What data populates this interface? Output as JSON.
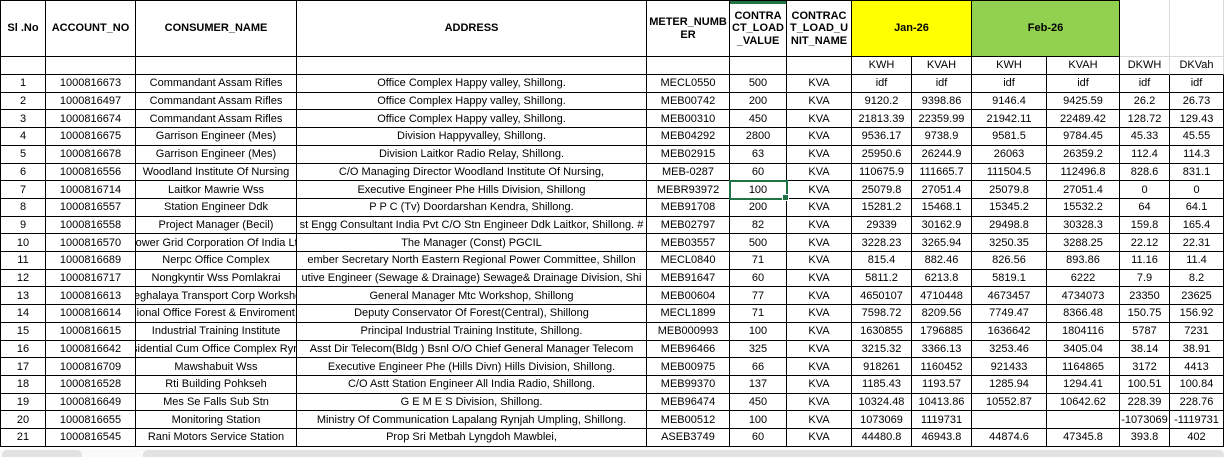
{
  "table": {
    "column_keys": [
      "sl_no",
      "account_no",
      "consumer_name",
      "address",
      "meter_number",
      "contract_load_value",
      "contract_load_unit_name",
      "jan_kwh",
      "jan_kvah",
      "feb_kwh",
      "feb_kvah",
      "dkwh",
      "dkvah"
    ],
    "columns": [
      {
        "key": "sl_no",
        "label": "Sl .No"
      },
      {
        "key": "account_no",
        "label": "ACCOUNT_NO"
      },
      {
        "key": "consumer_name",
        "label": "CONSUMER_NAME"
      },
      {
        "key": "address",
        "label": "ADDRESS"
      },
      {
        "key": "meter_number",
        "label": "METER_NUMBER"
      },
      {
        "key": "contract_load_value",
        "label": "CONTRACT_LOAD_VALUE"
      },
      {
        "key": "contract_load_unit_name",
        "label": "CONTRACT_LOAD_UNIT_NAME"
      }
    ],
    "month_groups": [
      {
        "label": "Jan-26",
        "color": "#FFFF00",
        "sub": [
          "KWH",
          "KVAH"
        ]
      },
      {
        "label": "Feb-26",
        "color": "#92D050",
        "sub": [
          "KWH",
          "KVAH"
        ]
      }
    ],
    "extra_columns": [
      "DKWH",
      "DKVah"
    ],
    "rows": [
      [
        "1",
        "1000816673",
        "Commandant Assam Rifles",
        "Office Complex Happy valley, Shillong.",
        "MECL0550",
        "500",
        "KVA",
        "idf",
        "idf",
        "idf",
        "idf",
        "idf",
        "idf"
      ],
      [
        "2",
        "1000816497",
        "Commandant Assam Rifles",
        "Office Complex Happy valley, Shillong.",
        "MEB00742",
        "200",
        "KVA",
        "9120.2",
        "9398.86",
        "9146.4",
        "9425.59",
        "26.2",
        "26.73"
      ],
      [
        "3",
        "1000816674",
        "Commandant Assam Rifles",
        "Office Complex Happy valley, Shillong.",
        "MEB00310",
        "450",
        "KVA",
        "21813.39",
        "22359.99",
        "21942.11",
        "22489.42",
        "128.72",
        "129.43"
      ],
      [
        "4",
        "1000816675",
        "Garrison Engineer (Mes)",
        "Division Happyvalley, Shillong.",
        "MEB04292",
        "2800",
        "KVA",
        "9536.17",
        "9738.9",
        "9581.5",
        "9784.45",
        "45.33",
        "45.55"
      ],
      [
        "5",
        "1000816678",
        "Garrison Engineer (Mes)",
        "Division Laitkor Radio Relay, Shillong.",
        "MEB02915",
        "63",
        "KVA",
        "25950.6",
        "26244.9",
        "26063",
        "26359.2",
        "112.4",
        "114.3"
      ],
      [
        "6",
        "1000816556",
        "Woodland Institute Of Nursing",
        "C/O Managing Director Woodland Institute Of Nursing,",
        "MEB-0287",
        "60",
        "KVA",
        "110675.9",
        "111665.7",
        "111504.5",
        "112496.8",
        "828.6",
        "831.1"
      ],
      [
        "7",
        "1000816714",
        "Laitkor Mawrie Wss",
        "Executive Engineer Phe Hills Division, Shillong",
        "MEBR93972",
        "100",
        "KVA",
        "25079.8",
        "27051.4",
        "25079.8",
        "27051.4",
        "0",
        "0"
      ],
      [
        "8",
        "1000816557",
        "Station Engineer Ddk",
        "P P C (Tv) Doordarshan Kendra, Shillong.",
        "MEB91708",
        "200",
        "KVA",
        "15281.2",
        "15468.1",
        "15345.2",
        "15532.2",
        "64",
        "64.1"
      ],
      [
        "9",
        "1000816558",
        "Project Manager (Becil)",
        "st Engg Consultant India Pvt C/O Stn Engineer Ddk Laitkor, Shillong. #",
        "MEB02797",
        "82",
        "KVA",
        "29339",
        "30162.9",
        "29498.8",
        "30328.3",
        "159.8",
        "165.4"
      ],
      [
        "10",
        "1000816570",
        "Power Grid Corporation Of India Ltd",
        "The Manager (Const) PGCIL",
        "MEB03557",
        "500",
        "KVA",
        "3228.23",
        "3265.94",
        "3250.35",
        "3288.25",
        "22.12",
        "22.31"
      ],
      [
        "11",
        "1000816689",
        "Nerpc Office Complex",
        "ember Secretary North Eastern Regional Power Committee, Shillon",
        "MECL0840",
        "71",
        "KVA",
        "815.4",
        "882.46",
        "826.56",
        "893.86",
        "11.16",
        "11.4"
      ],
      [
        "12",
        "1000816717",
        "Nongkyntir Wss Pomlakrai",
        "utive Engineer (Sewage & Drainage) Sewage& Drainage Division, Shi",
        "MEB91647",
        "60",
        "KVA",
        "5811.2",
        "6213.8",
        "5819.1",
        "6222",
        "7.9",
        "8.2"
      ],
      [
        "13",
        "1000816613",
        "Meghalaya Transport Corp Workshop",
        "General Manager Mtc Workshop, Shillong",
        "MEB00604",
        "77",
        "KVA",
        "4650107",
        "4710448",
        "4673457",
        "4734073",
        "23350",
        "23625"
      ],
      [
        "14",
        "1000816614",
        "Regional Office Forest & Enviroment Ner",
        "Deputy Conservator Of Forest(Central), Shillong",
        "MECL1899",
        "71",
        "KVA",
        "7598.72",
        "8209.56",
        "7749.47",
        "8366.48",
        "150.75",
        "156.92"
      ],
      [
        "15",
        "1000816615",
        "Industrial Training Institute",
        "Principal Industrial Training Institute, Shillong.",
        "MEB000993",
        "100",
        "KVA",
        "1630855",
        "1796885",
        "1636642",
        "1804116",
        "5787",
        "7231"
      ],
      [
        "16",
        "1000816642",
        "Residential Cum Office Complex Rynjah",
        "Asst Dir Telecom(Bldg ) Bsnl O/O Chief General Manager Telecom",
        "MEB96466",
        "325",
        "KVA",
        "3215.32",
        "3366.13",
        "3253.46",
        "3405.04",
        "38.14",
        "38.91"
      ],
      [
        "17",
        "1000816709",
        "Mawshabuit Wss",
        "Executive Engineer Phe (Hills Divn) Hills Division, Shillong.",
        "MEB00975",
        "66",
        "KVA",
        "918261",
        "1160452",
        "921433",
        "1164865",
        "3172",
        "4413"
      ],
      [
        "18",
        "1000816528",
        "Rti Building Pohkseh",
        "C/O Astt Station Engineer All India Radio, Shillong.",
        "MEB99370",
        "137",
        "KVA",
        "1185.43",
        "1193.57",
        "1285.94",
        "1294.41",
        "100.51",
        "100.84"
      ],
      [
        "19",
        "1000816649",
        "Mes Se Falls Sub Stn",
        "G E M E S Division, Shillong.",
        "MEB96474",
        "450",
        "KVA",
        "10324.48",
        "10413.86",
        "10552.87",
        "10642.62",
        "228.39",
        "228.76"
      ],
      [
        "20",
        "1000816655",
        "Monitoring Station",
        "Ministry Of Communication Lapalang Rynjah Umpling, Shillong.",
        "MEB00512",
        "100",
        "KVA",
        "1073069",
        "1119731",
        "",
        "",
        "-1073069",
        "-1119731"
      ],
      [
        "21",
        "1000816545",
        "Rani Motors Service Station",
        "Prop Sri Metbah Lyngdoh Mawblei,",
        "ASEB3749",
        "60",
        "KVA",
        "44480.8",
        "46943.8",
        "44874.6",
        "47345.8",
        "393.8",
        "402"
      ]
    ]
  },
  "selection": {
    "active_cell": {
      "row_number": 7,
      "column": "contract_load_value",
      "value": "100"
    }
  },
  "colors": {
    "jan_header": "#FFFF00",
    "feb_header": "#92D050",
    "selection_border": "#217346",
    "table_border": "#000000",
    "light_gridline": "#D9D9D9"
  }
}
